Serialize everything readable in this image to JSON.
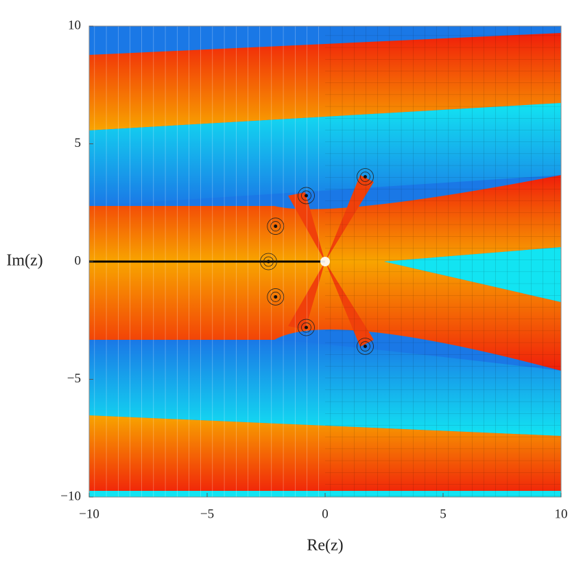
{
  "chart_data": {
    "type": "domain-coloring",
    "xlabel": "Re(z)",
    "ylabel": "Im(z)",
    "xlim": [
      -10,
      10
    ],
    "ylim": [
      -10,
      10
    ],
    "xticks": [
      {
        "value": -10,
        "label": "−10"
      },
      {
        "value": -5,
        "label": "−5"
      },
      0,
      5,
      10
    ],
    "yticks": [
      {
        "value": -10,
        "label": "−10"
      },
      {
        "value": -5,
        "label": "−5"
      },
      0,
      5,
      10
    ],
    "zeros": {
      "x": [
        -2.4,
        -2.1,
        -2.1,
        -0.8,
        -0.8,
        1.7,
        1.7
      ],
      "y": [
        0,
        1.5,
        -1.5,
        2.8,
        -2.8,
        3.6,
        -3.6
      ]
    }
  }
}
